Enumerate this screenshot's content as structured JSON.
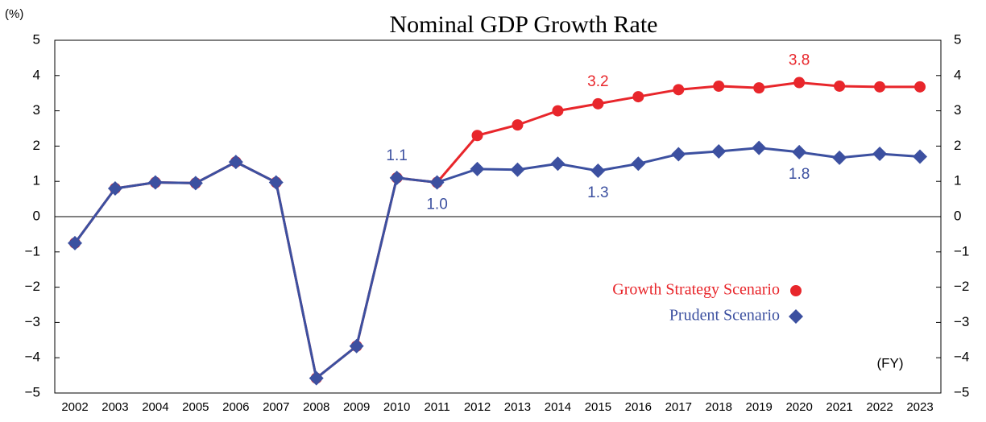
{
  "chart_data": {
    "type": "line",
    "title": "Nominal GDP Growth Rate",
    "y_unit": "(%)",
    "x_unit": "(FY)",
    "categories": [
      "2002",
      "2003",
      "2004",
      "2005",
      "2006",
      "2007",
      "2008",
      "2009",
      "2010",
      "2011",
      "2012",
      "2013",
      "2014",
      "2015",
      "2016",
      "2017",
      "2018",
      "2019",
      "2020",
      "2021",
      "2022",
      "2023"
    ],
    "series": [
      {
        "name": "Growth Strategy Scenario",
        "color": "#e8262b",
        "marker": "circle",
        "values": [
          -0.75,
          0.8,
          0.97,
          0.95,
          1.55,
          0.97,
          -4.58,
          -3.67,
          1.1,
          0.97,
          2.3,
          2.6,
          3.0,
          3.2,
          3.4,
          3.6,
          3.7,
          3.65,
          3.8,
          3.7,
          3.68,
          3.68
        ],
        "value_labels": [
          null,
          null,
          null,
          null,
          null,
          null,
          null,
          null,
          null,
          null,
          null,
          null,
          null,
          "3.2",
          null,
          null,
          null,
          null,
          "3.8",
          null,
          null,
          null
        ]
      },
      {
        "name": "Prudent Scenario",
        "color": "#3c50a0",
        "marker": "diamond",
        "values": [
          -0.75,
          0.8,
          0.97,
          0.95,
          1.55,
          0.97,
          -4.58,
          -3.67,
          1.1,
          0.97,
          1.35,
          1.33,
          1.5,
          1.3,
          1.5,
          1.77,
          1.85,
          1.95,
          1.83,
          1.67,
          1.78,
          1.7
        ],
        "value_labels": [
          null,
          null,
          null,
          null,
          null,
          null,
          null,
          null,
          "1.1",
          "1.0",
          null,
          null,
          null,
          "1.3",
          null,
          null,
          null,
          null,
          "1.8",
          null,
          null,
          null
        ]
      }
    ],
    "ylim": [
      -5,
      5
    ],
    "yticks": [
      {
        "value": -5,
        "label": "−5"
      },
      {
        "value": -4,
        "label": "−4"
      },
      {
        "value": -3,
        "label": "−3"
      },
      {
        "value": -2,
        "label": "−2"
      },
      {
        "value": -1,
        "label": "−1"
      },
      0,
      1,
      2,
      3,
      4,
      5
    ],
    "grid": false
  }
}
